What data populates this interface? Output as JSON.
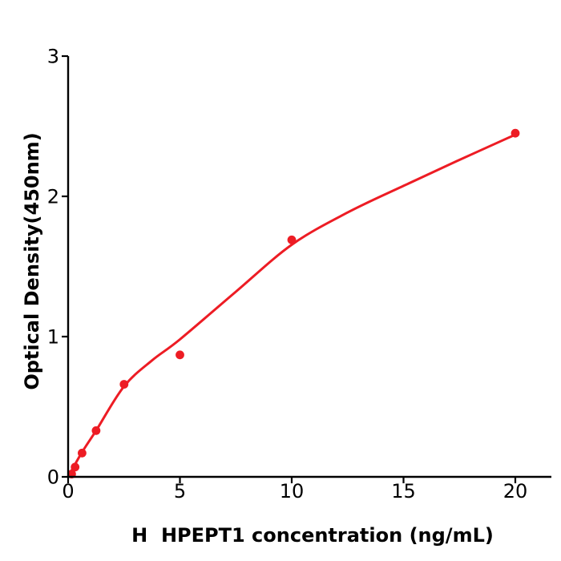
{
  "chart_data": {
    "type": "scatter",
    "title": "",
    "xlabel": "H  HPEPT1 concentration (ng/mL)",
    "ylabel": "Optical Density(450nm)",
    "xlim": [
      0,
      21.6
    ],
    "ylim": [
      0,
      3
    ],
    "x_ticks": [
      0,
      5,
      10,
      15,
      20
    ],
    "y_ticks": [
      0,
      1,
      2,
      3
    ],
    "grid": false,
    "legend": false,
    "colors": {
      "points": "#ed1c24",
      "curve": "#ed1c24",
      "axis": "#000000",
      "background": "#ffffff"
    },
    "series": [
      {
        "name": "standard data points",
        "type": "scatter",
        "x": [
          0.156,
          0.313,
          0.625,
          1.25,
          2.5,
          5,
          10,
          20
        ],
        "y": [
          0.02,
          0.07,
          0.17,
          0.33,
          0.66,
          0.87,
          1.69,
          2.45
        ]
      },
      {
        "name": "fitted standard curve",
        "type": "line",
        "x": [
          0,
          0.6,
          1.25,
          2.5,
          3.75,
          5,
          7.5,
          10,
          12.5,
          15,
          17.5,
          20
        ],
        "y": [
          0,
          0.17,
          0.33,
          0.645,
          0.83,
          0.98,
          1.32,
          1.655,
          1.885,
          2.075,
          2.26,
          2.44
        ]
      }
    ]
  }
}
